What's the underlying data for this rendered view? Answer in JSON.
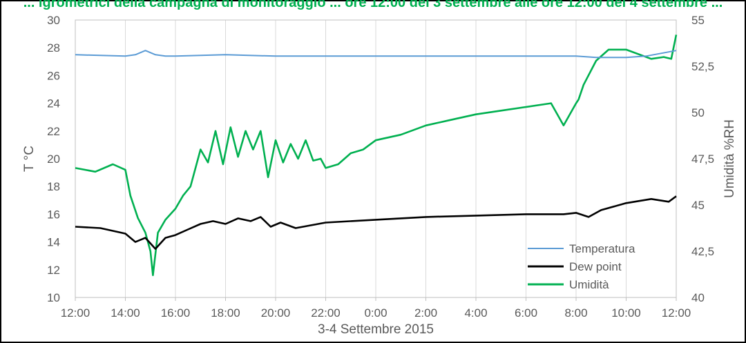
{
  "caption": "... igrometrici della campagna di monitoraggio ... ore 12:00 del 3 settembre alle ore 12:00 del 4 settembre ...",
  "chart_data": {
    "type": "line",
    "xlabel": "3-4 Settembre 2015",
    "ylabel": "T °C",
    "ylabel_right": "Umidità %RH",
    "x_ticks": [
      "12:00",
      "14:00",
      "16:00",
      "18:00",
      "20:00",
      "22:00",
      "0:00",
      "2:00",
      "4:00",
      "6:00",
      "8:00",
      "10:00",
      "12:00"
    ],
    "x_range_hours": [
      0,
      24
    ],
    "y_left_ticks": [
      "10",
      "12",
      "14",
      "16",
      "18",
      "20",
      "22",
      "24",
      "26",
      "28",
      "30"
    ],
    "ylim_left": [
      10,
      30
    ],
    "y_right_ticks": [
      "40",
      "42,5",
      "45",
      "47,5",
      "50",
      "52,5",
      "55"
    ],
    "ylim_right": [
      40,
      55
    ],
    "grid": "vertical",
    "legend_position": "bottom-right",
    "series": [
      {
        "name": "Temperatura",
        "axis": "left",
        "color": "#5b9bd5",
        "x": [
          0,
          2.0,
          2.4,
          2.8,
          3.2,
          3.6,
          4.0,
          6.0,
          8.0,
          10.0,
          12.0,
          14.0,
          16.0,
          18.0,
          20.0,
          20.8,
          22.0,
          22.8,
          24.0
        ],
        "y": [
          27.5,
          27.4,
          27.5,
          27.8,
          27.5,
          27.4,
          27.4,
          27.5,
          27.4,
          27.4,
          27.4,
          27.4,
          27.4,
          27.4,
          27.4,
          27.3,
          27.3,
          27.4,
          27.8
        ]
      },
      {
        "name": "Dew point",
        "axis": "left",
        "color": "#000000",
        "x": [
          0,
          1.0,
          1.5,
          2.0,
          2.4,
          2.8,
          3.2,
          3.6,
          4.0,
          4.5,
          5.0,
          5.5,
          6.0,
          6.5,
          7.0,
          7.4,
          7.8,
          8.2,
          8.8,
          10.0,
          12.0,
          14.0,
          16.0,
          18.0,
          19.5,
          20.0,
          20.5,
          21.0,
          22.0,
          23.0,
          23.7,
          24.0
        ],
        "y": [
          15.1,
          15.0,
          14.8,
          14.6,
          14.0,
          14.3,
          13.5,
          14.3,
          14.5,
          14.9,
          15.3,
          15.5,
          15.3,
          15.7,
          15.5,
          15.8,
          15.1,
          15.4,
          15.0,
          15.4,
          15.6,
          15.8,
          15.9,
          16.0,
          16.0,
          16.1,
          15.8,
          16.3,
          16.8,
          17.1,
          16.9,
          17.3
        ]
      },
      {
        "name": "Umidità",
        "axis": "right",
        "color": "#00b050",
        "x": [
          0,
          0.8,
          1.5,
          2.0,
          2.2,
          2.5,
          2.8,
          3.0,
          3.1,
          3.3,
          3.6,
          4.0,
          4.3,
          4.6,
          5.0,
          5.3,
          5.6,
          5.9,
          6.2,
          6.5,
          6.8,
          7.1,
          7.4,
          7.7,
          8.0,
          8.3,
          8.6,
          8.9,
          9.2,
          9.5,
          9.8,
          10.0,
          10.5,
          11.0,
          11.5,
          12.0,
          13.0,
          14.0,
          15.0,
          16.0,
          17.0,
          18.0,
          19.0,
          19.5,
          20.0,
          20.1,
          20.3,
          20.8,
          21.3,
          22.0,
          23.0,
          23.5,
          23.8,
          24.0
        ],
        "y": [
          47.0,
          46.8,
          47.2,
          46.9,
          45.5,
          44.3,
          43.5,
          42.5,
          41.2,
          43.5,
          44.2,
          44.8,
          45.5,
          46.0,
          48.0,
          47.3,
          49.0,
          47.2,
          49.2,
          47.6,
          49.0,
          48.0,
          49.0,
          46.5,
          48.5,
          47.3,
          48.3,
          47.5,
          48.5,
          47.4,
          47.5,
          47.0,
          47.2,
          47.8,
          48.0,
          48.5,
          48.8,
          49.3,
          49.6,
          49.9,
          50.1,
          50.3,
          50.5,
          49.3,
          50.5,
          50.7,
          51.5,
          52.8,
          53.4,
          53.4,
          52.9,
          53.0,
          52.9,
          54.2
        ]
      }
    ]
  }
}
